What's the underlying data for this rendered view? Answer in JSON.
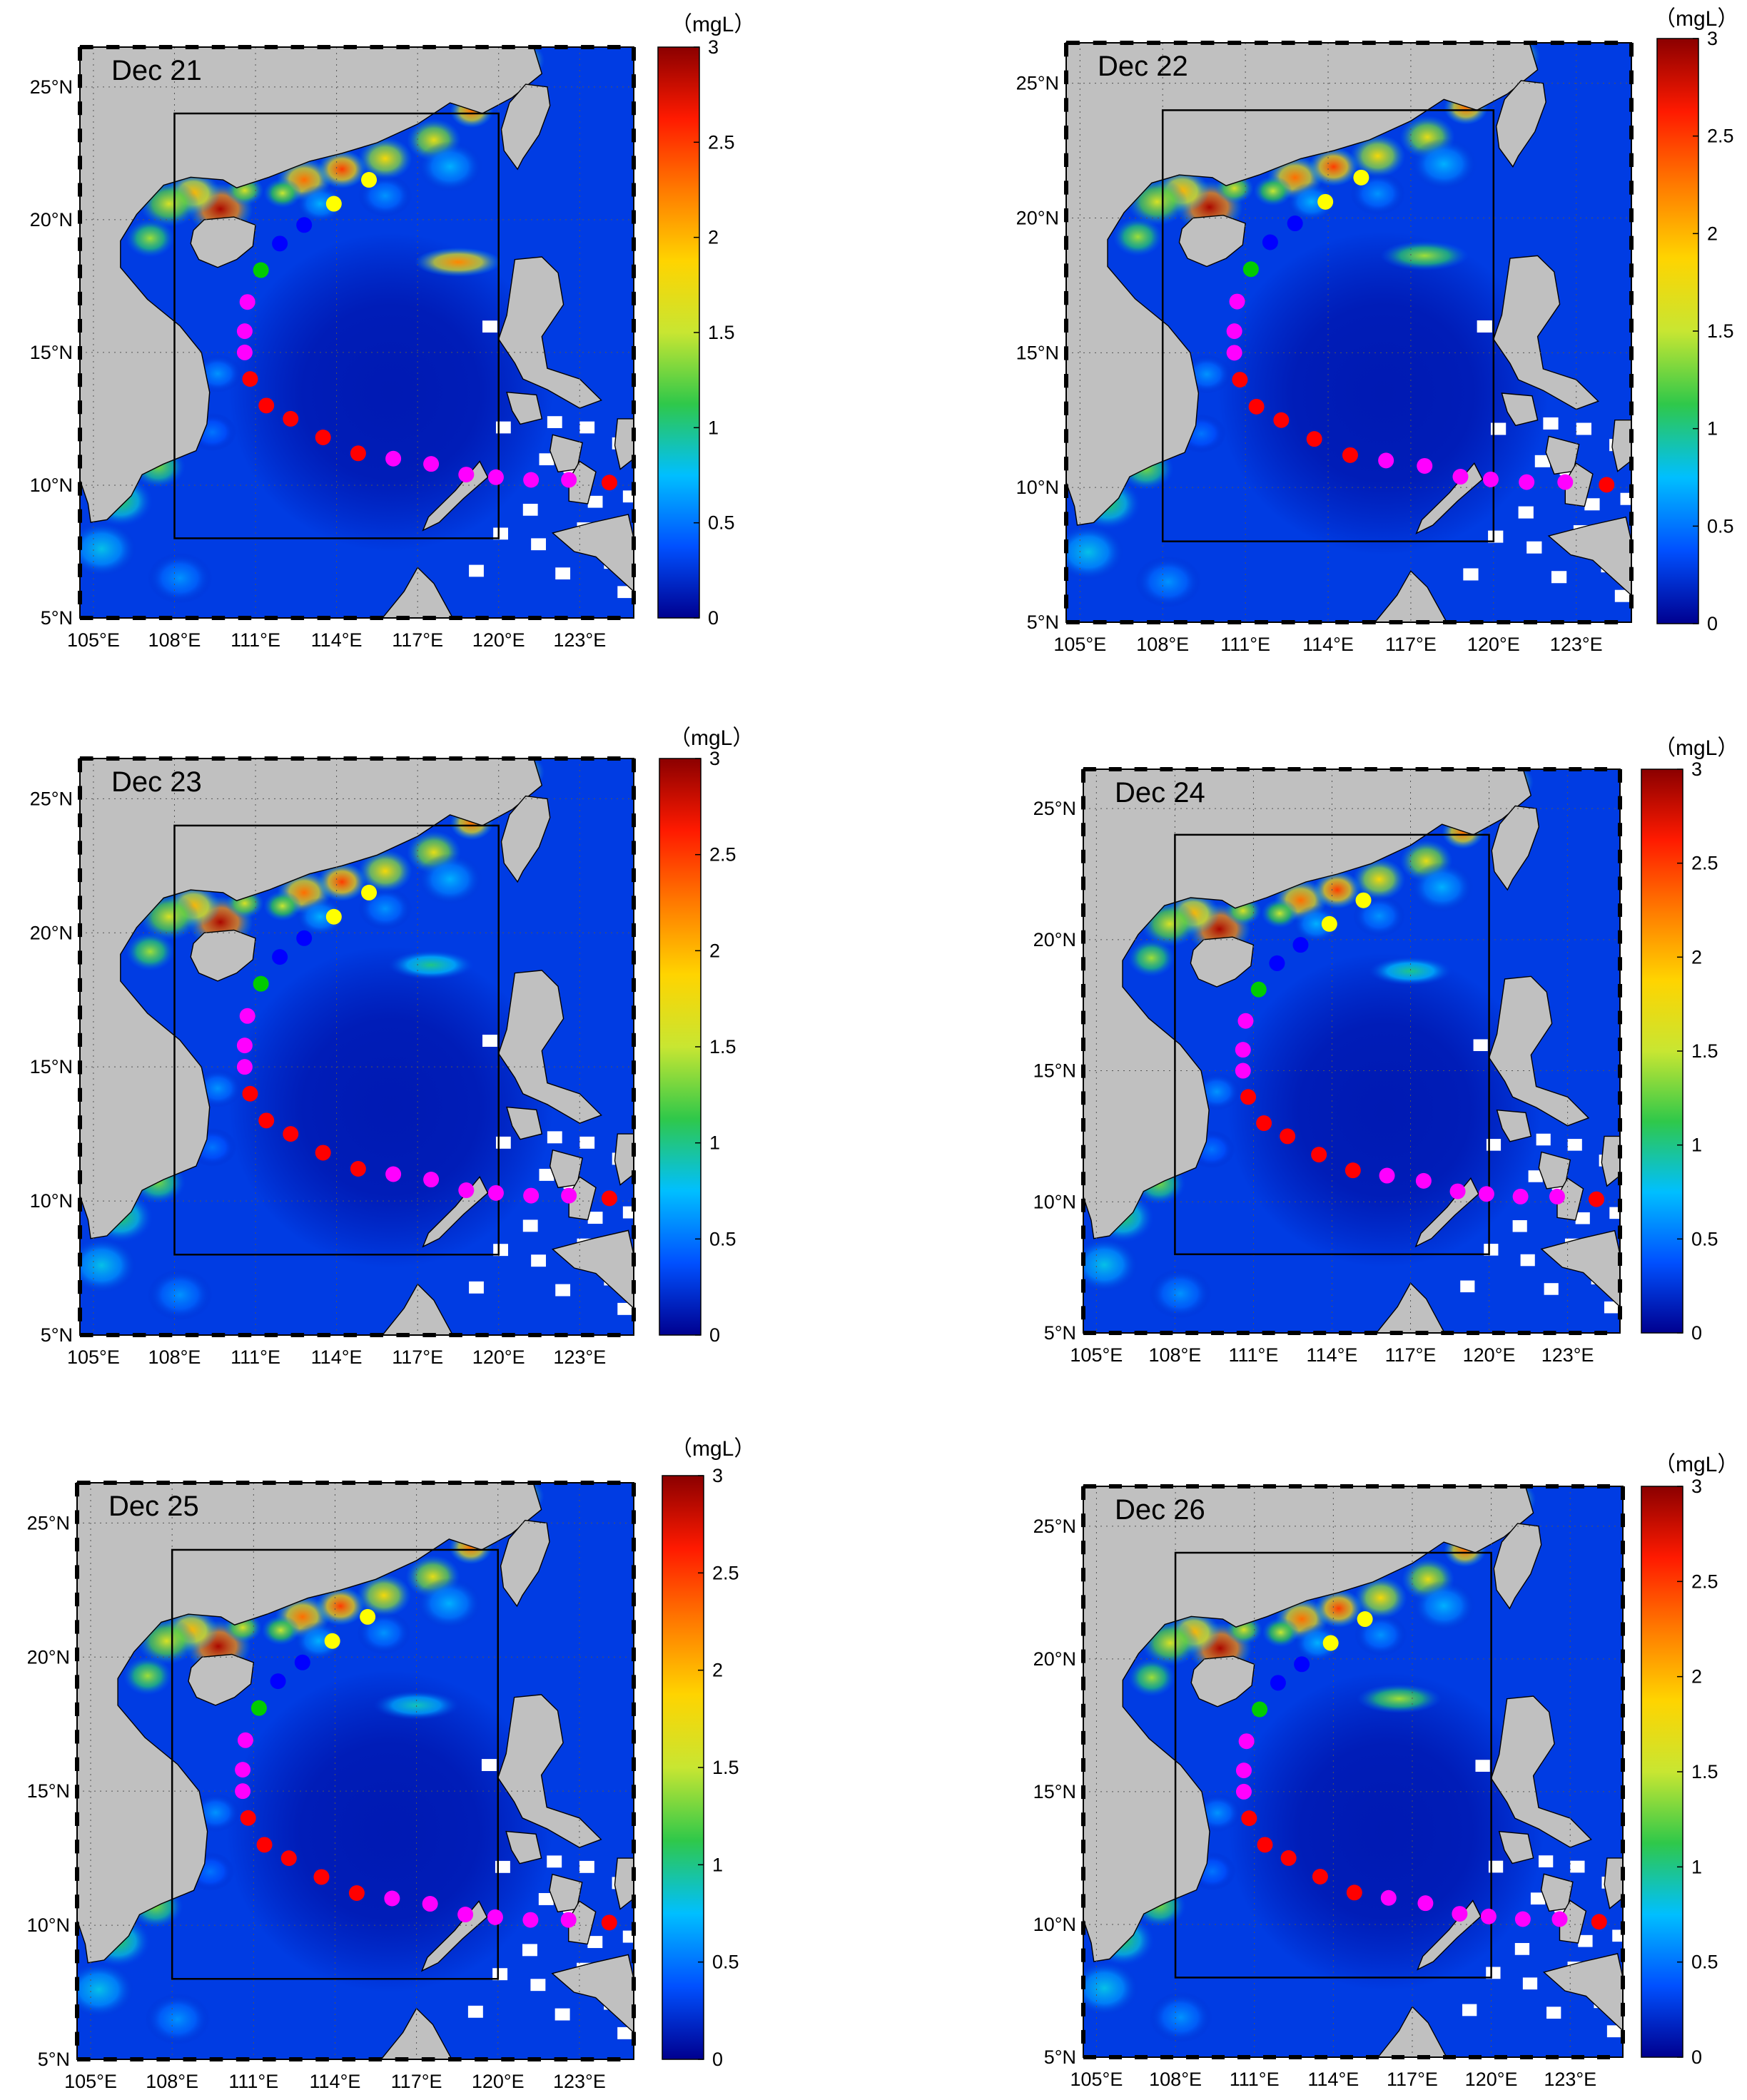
{
  "figure": {
    "unit_label": "（mgL）",
    "lat_ticks": [
      "5°N",
      "10°N",
      "15°N",
      "20°N",
      "25°N"
    ],
    "lon_ticks": [
      "105°E",
      "108°E",
      "111°E",
      "114°E",
      "117°E",
      "120°E",
      "123°E"
    ],
    "colorbar_ticks": [
      "0",
      "0.5",
      "1",
      "1.5",
      "2",
      "2.5",
      "3"
    ],
    "colorbar_range": [
      0,
      3
    ],
    "colormap": [
      "#00008f",
      "#0050ff",
      "#00bfff",
      "#2fc84a",
      "#c8e632",
      "#ffd400",
      "#ff7a00",
      "#ff1a00",
      "#8b0000"
    ],
    "map_extent": {
      "lon": [
        104.5,
        125
      ],
      "lat": [
        5,
        26.5
      ]
    },
    "study_box": {
      "lon": [
        108,
        120
      ],
      "lat": [
        8,
        24
      ]
    },
    "land_color": "#c0c0c0",
    "missing_color": "#ffffff"
  },
  "typhoon_track": [
    {
      "lon": 124.1,
      "lat": 10.1,
      "color": "#ff0000"
    },
    {
      "lon": 122.6,
      "lat": 10.2,
      "color": "#ff00ff"
    },
    {
      "lon": 121.2,
      "lat": 10.2,
      "color": "#ff00ff"
    },
    {
      "lon": 119.9,
      "lat": 10.3,
      "color": "#ff00ff"
    },
    {
      "lon": 118.8,
      "lat": 10.4,
      "color": "#ff00ff"
    },
    {
      "lon": 117.5,
      "lat": 10.8,
      "color": "#ff00ff"
    },
    {
      "lon": 116.1,
      "lat": 11.0,
      "color": "#ff00ff"
    },
    {
      "lon": 114.8,
      "lat": 11.2,
      "color": "#ff0000"
    },
    {
      "lon": 113.5,
      "lat": 11.8,
      "color": "#ff0000"
    },
    {
      "lon": 112.3,
      "lat": 12.5,
      "color": "#ff0000"
    },
    {
      "lon": 111.4,
      "lat": 13.0,
      "color": "#ff0000"
    },
    {
      "lon": 110.8,
      "lat": 14.0,
      "color": "#ff0000"
    },
    {
      "lon": 110.6,
      "lat": 15.0,
      "color": "#ff00ff"
    },
    {
      "lon": 110.6,
      "lat": 15.8,
      "color": "#ff00ff"
    },
    {
      "lon": 110.7,
      "lat": 16.9,
      "color": "#ff00ff"
    },
    {
      "lon": 111.2,
      "lat": 18.1,
      "color": "#00cc00"
    },
    {
      "lon": 111.9,
      "lat": 19.1,
      "color": "#0000ff"
    },
    {
      "lon": 112.8,
      "lat": 19.8,
      "color": "#0000ff"
    },
    {
      "lon": 113.9,
      "lat": 20.6,
      "color": "#ffff00"
    },
    {
      "lon": 115.2,
      "lat": 21.5,
      "color": "#ffff00"
    }
  ],
  "panels": [
    {
      "date": "Dec 21",
      "blobs": [
        {
          "lon": 118.5,
          "lat": 18.4,
          "v": 2.2
        }
      ]
    },
    {
      "date": "Dec 22",
      "blobs": [
        {
          "lon": 117.5,
          "lat": 18.6,
          "v": 1.4
        }
      ]
    },
    {
      "date": "Dec 23",
      "blobs": [
        {
          "lon": 117.5,
          "lat": 18.8,
          "v": 1.0
        }
      ]
    },
    {
      "date": "Dec 24",
      "blobs": [
        {
          "lon": 117.0,
          "lat": 18.8,
          "v": 1.0
        }
      ]
    },
    {
      "date": "Dec 25",
      "blobs": [
        {
          "lon": 117.0,
          "lat": 18.2,
          "v": 0.9
        }
      ]
    },
    {
      "date": "Dec 26",
      "blobs": [
        {
          "lon": 116.5,
          "lat": 18.5,
          "v": 1.4
        }
      ]
    }
  ]
}
